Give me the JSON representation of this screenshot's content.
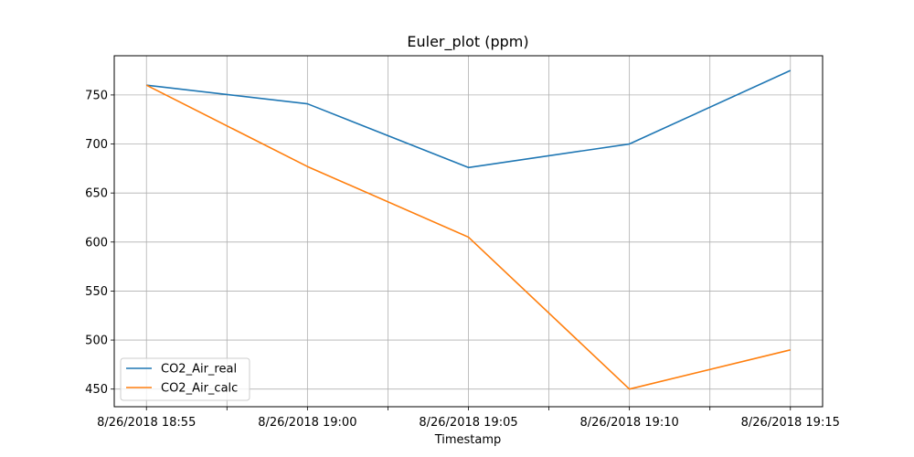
{
  "chart_data": {
    "type": "line",
    "title": "Euler_plot (ppm)",
    "xlabel": "Timestamp",
    "ylabel": "",
    "x_ticks": [
      {
        "value": 0,
        "label": "8/26/2018 18:55"
      },
      {
        "value": 1,
        "label": ""
      },
      {
        "value": 2,
        "label": "8/26/2018 19:00"
      },
      {
        "value": 3,
        "label": ""
      },
      {
        "value": 4,
        "label": "8/26/2018 19:05"
      },
      {
        "value": 5,
        "label": ""
      },
      {
        "value": 6,
        "label": "8/26/2018 19:10"
      },
      {
        "value": 7,
        "label": ""
      },
      {
        "value": 8,
        "label": "8/26/2018 19:15"
      }
    ],
    "xlim": [
      -0.4,
      8.4
    ],
    "ylim": [
      432,
      790
    ],
    "y_ticks": [
      450,
      500,
      550,
      600,
      650,
      700,
      750
    ],
    "grid": true,
    "legend_position": "lower-left",
    "series": [
      {
        "name": "CO2_Air_real",
        "color": "#1f77b4",
        "x": [
          0,
          2,
          4,
          6,
          8
        ],
        "y": [
          760,
          741,
          676,
          700,
          775
        ]
      },
      {
        "name": "CO2_Air_calc",
        "color": "#ff7f0e",
        "x": [
          0,
          2,
          4,
          6,
          8
        ],
        "y": [
          760,
          677,
          605,
          450,
          490
        ]
      }
    ]
  }
}
